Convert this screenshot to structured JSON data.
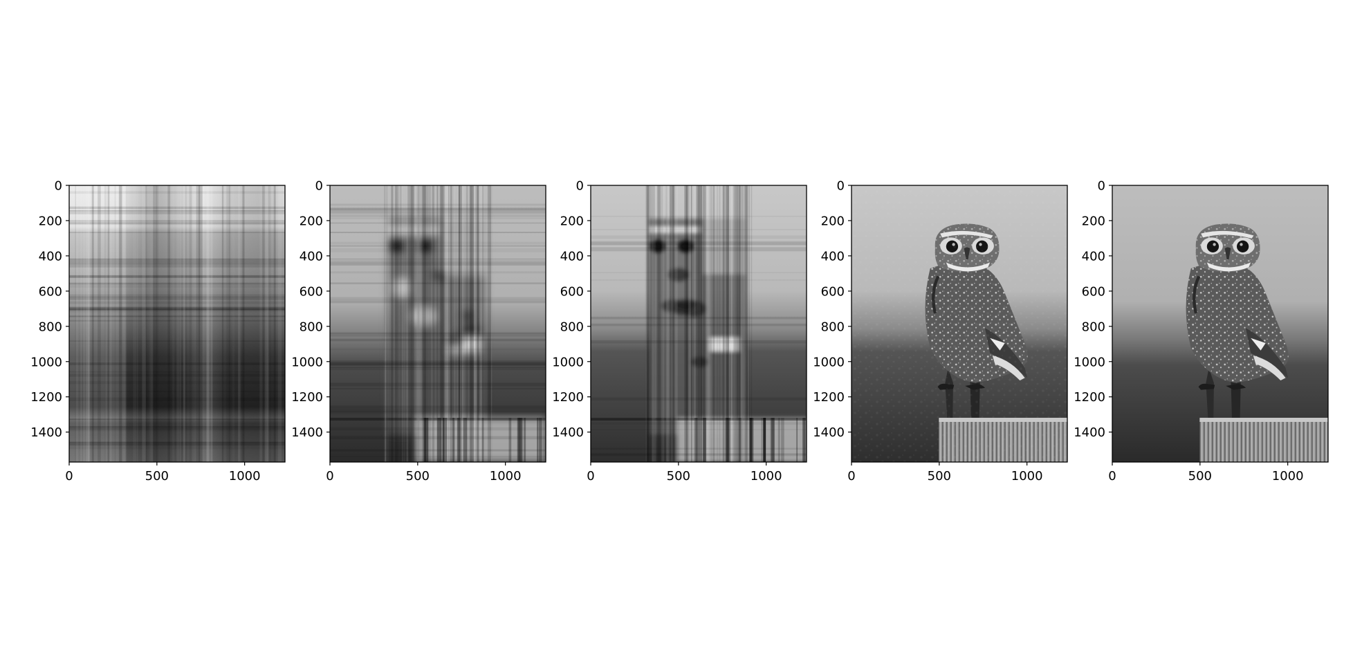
{
  "figure": {
    "background": "#ffffff"
  },
  "chart_data": [
    {
      "type": "heatmap",
      "colormap": "gray",
      "content": "column-stripe approximation of owl photograph",
      "xlim": [
        0,
        1230
      ],
      "ylim": [
        1570,
        0
      ],
      "xticks": [
        "0",
        "500",
        "1000"
      ],
      "yticks": [
        "0",
        "200",
        "400",
        "600",
        "800",
        "1000",
        "1200",
        "1400"
      ]
    },
    {
      "type": "heatmap",
      "colormap": "gray",
      "content": "blurry low-rank approximation of owl photograph",
      "xlim": [
        0,
        1230
      ],
      "ylim": [
        1570,
        0
      ],
      "xticks": [
        "0",
        "500",
        "1000"
      ],
      "yticks": [
        "0",
        "200",
        "400",
        "600",
        "800",
        "1000",
        "1200",
        "1400"
      ]
    },
    {
      "type": "heatmap",
      "colormap": "gray",
      "content": "less blurry approximation of owl photograph",
      "xlim": [
        0,
        1230
      ],
      "ylim": [
        1570,
        0
      ],
      "xticks": [
        "0",
        "500",
        "1000"
      ],
      "yticks": [
        "0",
        "200",
        "400",
        "600",
        "800",
        "1000",
        "1200",
        "1400"
      ]
    },
    {
      "type": "heatmap",
      "colormap": "gray",
      "content": "near-full approximation of owl on a post",
      "xlim": [
        0,
        1230
      ],
      "ylim": [
        1570,
        0
      ],
      "xticks": [
        "0",
        "500",
        "1000"
      ],
      "yticks": [
        "0",
        "200",
        "400",
        "600",
        "800",
        "1000",
        "1200",
        "1400"
      ]
    },
    {
      "type": "heatmap",
      "colormap": "gray",
      "content": "original owl on a post",
      "xlim": [
        0,
        1230
      ],
      "ylim": [
        1570,
        0
      ],
      "xticks": [
        "0",
        "500",
        "1000"
      ],
      "yticks": [
        "0",
        "200",
        "400",
        "600",
        "800",
        "1000",
        "1200",
        "1400"
      ]
    }
  ]
}
